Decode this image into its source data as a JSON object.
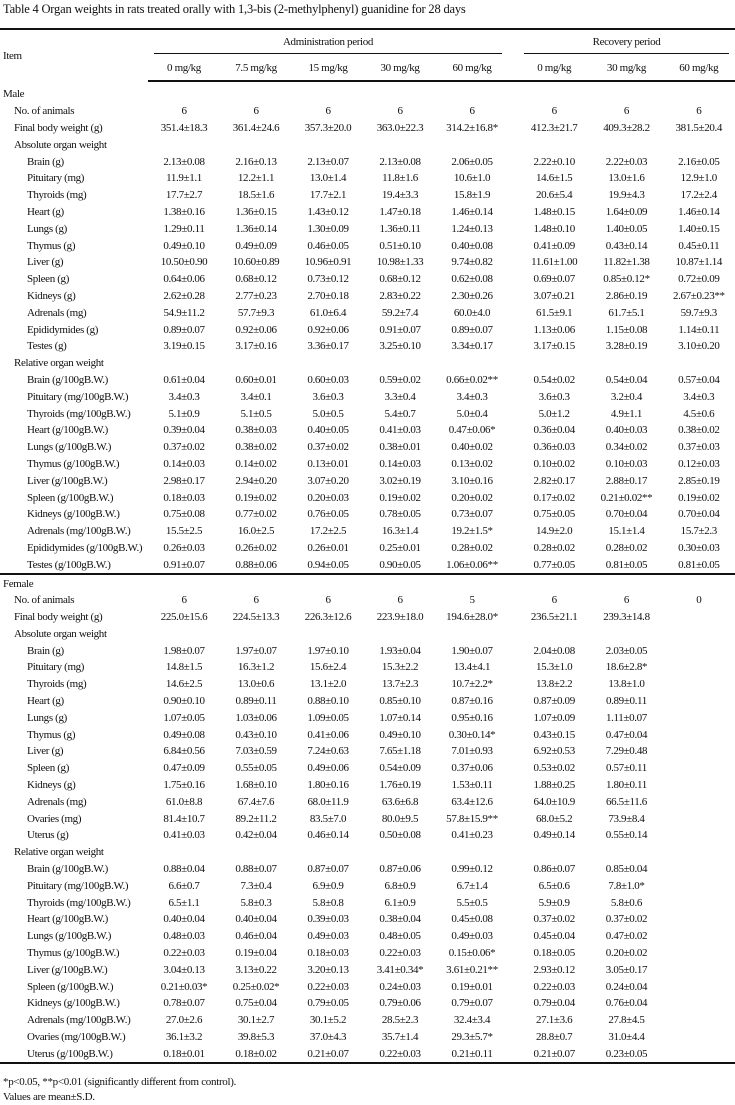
{
  "title": "Table 4   Organ weights in rats treated orally with 1,3-bis (2-methylphenyl) guanidine for 28 days",
  "header": {
    "item": "Item",
    "administration": "Administration period",
    "recovery": "Recovery period",
    "doses": [
      "0 mg/kg",
      "7.5 mg/kg",
      "15 mg/kg",
      "30 mg/kg",
      "60 mg/kg",
      "0 mg/kg",
      "30 mg/kg",
      "60 mg/kg"
    ]
  },
  "sections": [
    {
      "label": "Male",
      "rows": [
        {
          "kind": "summary",
          "label": "No. of animals",
          "values": [
            "6",
            "6",
            "6",
            "6",
            "6",
            "6",
            "6",
            "6"
          ]
        },
        {
          "kind": "summary",
          "label": "Final body weight (g)",
          "values": [
            "351.4±18.3",
            "361.4±24.6",
            "357.3±20.0",
            "363.0±22.3",
            "314.2±16.8*",
            "412.3±21.7",
            "409.3±28.2",
            "381.5±20.4"
          ]
        },
        {
          "kind": "group",
          "label": "Absolute organ weight"
        },
        {
          "kind": "organ",
          "label": "Brain (g)",
          "values": [
            "2.13±0.08",
            "2.16±0.13",
            "2.13±0.07",
            "2.13±0.08",
            "2.06±0.05",
            "2.22±0.10",
            "2.22±0.03",
            "2.16±0.05"
          ]
        },
        {
          "kind": "organ",
          "label": "Pituitary (mg)",
          "values": [
            "11.9±1.1",
            "12.2±1.1",
            "13.0±1.4",
            "11.8±1.6",
            "10.6±1.0",
            "14.6±1.5",
            "13.0±1.6",
            "12.9±1.0"
          ]
        },
        {
          "kind": "organ",
          "label": "Thyroids (mg)",
          "values": [
            "17.7±2.7",
            "18.5±1.6",
            "17.7±2.1",
            "19.4±3.3",
            "15.8±1.9",
            "20.6±5.4",
            "19.9±4.3",
            "17.2±2.4"
          ]
        },
        {
          "kind": "organ",
          "label": "Heart (g)",
          "values": [
            "1.38±0.16",
            "1.36±0.15",
            "1.43±0.12",
            "1.47±0.18",
            "1.46±0.14",
            "1.48±0.15",
            "1.64±0.09",
            "1.46±0.14"
          ]
        },
        {
          "kind": "organ",
          "label": "Lungs (g)",
          "values": [
            "1.29±0.11",
            "1.36±0.14",
            "1.30±0.09",
            "1.36±0.11",
            "1.24±0.13",
            "1.48±0.10",
            "1.40±0.05",
            "1.40±0.15"
          ]
        },
        {
          "kind": "organ",
          "label": "Thymus (g)",
          "values": [
            "0.49±0.10",
            "0.49±0.09",
            "0.46±0.05",
            "0.51±0.10",
            "0.40±0.08",
            "0.41±0.09",
            "0.43±0.14",
            "0.45±0.11"
          ]
        },
        {
          "kind": "organ",
          "label": "Liver (g)",
          "values": [
            "10.50±0.90",
            "10.60±0.89",
            "10.96±0.91",
            "10.98±1.33",
            "9.74±0.82",
            "11.61±1.00",
            "11.82±1.38",
            "10.87±1.14"
          ]
        },
        {
          "kind": "organ",
          "label": "Spleen (g)",
          "values": [
            "0.64±0.06",
            "0.68±0.12",
            "0.73±0.12",
            "0.68±0.12",
            "0.62±0.08",
            "0.69±0.07",
            "0.85±0.12*",
            "0.72±0.09"
          ]
        },
        {
          "kind": "organ",
          "label": "Kidneys (g)",
          "values": [
            "2.62±0.28",
            "2.77±0.23",
            "2.70±0.18",
            "2.83±0.22",
            "2.30±0.26",
            "3.07±0.21",
            "2.86±0.19",
            "2.67±0.23**"
          ]
        },
        {
          "kind": "organ",
          "label": "Adrenals (mg)",
          "values": [
            "54.9±11.2",
            "57.7±9.3",
            "61.0±6.4",
            "59.2±7.4",
            "60.0±4.0",
            "61.5±9.1",
            "61.7±5.1",
            "59.7±9.3"
          ]
        },
        {
          "kind": "organ",
          "label": "Epididymides (g)",
          "values": [
            "0.89±0.07",
            "0.92±0.06",
            "0.92±0.06",
            "0.91±0.07",
            "0.89±0.07",
            "1.13±0.06",
            "1.15±0.08",
            "1.14±0.11"
          ]
        },
        {
          "kind": "organ",
          "label": "Testes (g)",
          "values": [
            "3.19±0.15",
            "3.17±0.16",
            "3.36±0.17",
            "3.25±0.10",
            "3.34±0.17",
            "3.17±0.15",
            "3.28±0.19",
            "3.10±0.20"
          ]
        },
        {
          "kind": "group",
          "label": "Relative organ weight"
        },
        {
          "kind": "organ",
          "label": "Brain (g/100gB.W.)",
          "values": [
            "0.61±0.04",
            "0.60±0.01",
            "0.60±0.03",
            "0.59±0.02",
            "0.66±0.02**",
            "0.54±0.02",
            "0.54±0.04",
            "0.57±0.04"
          ]
        },
        {
          "kind": "organ",
          "label": "Pituitary (mg/100gB.W.)",
          "values": [
            "3.4±0.3",
            "3.4±0.1",
            "3.6±0.3",
            "3.3±0.4",
            "3.4±0.3",
            "3.6±0.3",
            "3.2±0.4",
            "3.4±0.3"
          ]
        },
        {
          "kind": "organ",
          "label": "Thyroids (mg/100gB.W.)",
          "values": [
            "5.1±0.9",
            "5.1±0.5",
            "5.0±0.5",
            "5.4±0.7",
            "5.0±0.4",
            "5.0±1.2",
            "4.9±1.1",
            "4.5±0.6"
          ]
        },
        {
          "kind": "organ",
          "label": "Heart (g/100gB.W.)",
          "values": [
            "0.39±0.04",
            "0.38±0.03",
            "0.40±0.05",
            "0.41±0.03",
            "0.47±0.06*",
            "0.36±0.04",
            "0.40±0.03",
            "0.38±0.02"
          ]
        },
        {
          "kind": "organ",
          "label": "Lungs (g/100gB.W.)",
          "values": [
            "0.37±0.02",
            "0.38±0.02",
            "0.37±0.02",
            "0.38±0.01",
            "0.40±0.02",
            "0.36±0.03",
            "0.34±0.02",
            "0.37±0.03"
          ]
        },
        {
          "kind": "organ",
          "label": "Thymus (g/100gB.W.)",
          "values": [
            "0.14±0.03",
            "0.14±0.02",
            "0.13±0.01",
            "0.14±0.03",
            "0.13±0.02",
            "0.10±0.02",
            "0.10±0.03",
            "0.12±0.03"
          ]
        },
        {
          "kind": "organ",
          "label": "Liver (g/100gB.W.)",
          "values": [
            "2.98±0.17",
            "2.94±0.20",
            "3.07±0.20",
            "3.02±0.19",
            "3.10±0.16",
            "2.82±0.17",
            "2.88±0.17",
            "2.85±0.19"
          ]
        },
        {
          "kind": "organ",
          "label": "Spleen (g/100gB.W.)",
          "values": [
            "0.18±0.03",
            "0.19±0.02",
            "0.20±0.03",
            "0.19±0.02",
            "0.20±0.02",
            "0.17±0.02",
            "0.21±0.02**",
            "0.19±0.02"
          ]
        },
        {
          "kind": "organ",
          "label": "Kidneys (g/100gB.W.)",
          "values": [
            "0.75±0.08",
            "0.77±0.02",
            "0.76±0.05",
            "0.78±0.05",
            "0.73±0.07",
            "0.75±0.05",
            "0.70±0.04",
            "0.70±0.04"
          ]
        },
        {
          "kind": "organ",
          "label": "Adrenals (mg/100gB.W.)",
          "values": [
            "15.5±2.5",
            "16.0±2.5",
            "17.2±2.5",
            "16.3±1.4",
            "19.2±1.5*",
            "14.9±2.0",
            "15.1±1.4",
            "15.7±2.3"
          ]
        },
        {
          "kind": "organ",
          "label": "Epididymides (g/100gB.W.)",
          "values": [
            "0.26±0.03",
            "0.26±0.02",
            "0.26±0.01",
            "0.25±0.01",
            "0.28±0.02",
            "0.28±0.02",
            "0.28±0.02",
            "0.30±0.03"
          ]
        },
        {
          "kind": "organ",
          "label": "Testes (g/100gB.W.)",
          "values": [
            "0.91±0.07",
            "0.88±0.06",
            "0.94±0.05",
            "0.90±0.05",
            "1.06±0.06**",
            "0.77±0.05",
            "0.81±0.05",
            "0.81±0.05"
          ]
        }
      ]
    },
    {
      "label": "Female",
      "rows": [
        {
          "kind": "summary",
          "label": "No. of animals",
          "values": [
            "6",
            "6",
            "6",
            "6",
            "5",
            "6",
            "6",
            "0"
          ]
        },
        {
          "kind": "summary",
          "label": "Final body weight (g)",
          "values": [
            "225.0±15.6",
            "224.5±13.3",
            "226.3±12.6",
            "223.9±18.0",
            "194.6±28.0*",
            "236.5±21.1",
            "239.3±14.8",
            ""
          ]
        },
        {
          "kind": "group",
          "label": "Absolute organ weight"
        },
        {
          "kind": "organ",
          "label": "Brain (g)",
          "values": [
            "1.98±0.07",
            "1.97±0.07",
            "1.97±0.10",
            "1.93±0.04",
            "1.90±0.07",
            "2.04±0.08",
            "2.03±0.05",
            ""
          ]
        },
        {
          "kind": "organ",
          "label": "Pituitary (mg)",
          "values": [
            "14.8±1.5",
            "16.3±1.2",
            "15.6±2.4",
            "15.3±2.2",
            "13.4±4.1",
            "15.3±1.0",
            "18.6±2.8*",
            ""
          ]
        },
        {
          "kind": "organ",
          "label": "Thyroids (mg)",
          "values": [
            "14.6±2.5",
            "13.0±0.6",
            "13.1±2.0",
            "13.7±2.3",
            "10.7±2.2*",
            "13.8±2.2",
            "13.8±1.0",
            ""
          ]
        },
        {
          "kind": "organ",
          "label": "Heart (g)",
          "values": [
            "0.90±0.10",
            "0.89±0.11",
            "0.88±0.10",
            "0.85±0.10",
            "0.87±0.16",
            "0.87±0.09",
            "0.89±0.11",
            ""
          ]
        },
        {
          "kind": "organ",
          "label": "Lungs (g)",
          "values": [
            "1.07±0.05",
            "1.03±0.06",
            "1.09±0.05",
            "1.07±0.14",
            "0.95±0.16",
            "1.07±0.09",
            "1.11±0.07",
            ""
          ]
        },
        {
          "kind": "organ",
          "label": "Thymus (g)",
          "values": [
            "0.49±0.08",
            "0.43±0.10",
            "0.41±0.06",
            "0.49±0.10",
            "0.30±0.14*",
            "0.43±0.15",
            "0.47±0.04",
            ""
          ]
        },
        {
          "kind": "organ",
          "label": "Liver (g)",
          "values": [
            "6.84±0.56",
            "7.03±0.59",
            "7.24±0.63",
            "7.65±1.18",
            "7.01±0.93",
            "6.92±0.53",
            "7.29±0.48",
            ""
          ]
        },
        {
          "kind": "organ",
          "label": "Spleen (g)",
          "values": [
            "0.47±0.09",
            "0.55±0.05",
            "0.49±0.06",
            "0.54±0.09",
            "0.37±0.06",
            "0.53±0.02",
            "0.57±0.11",
            ""
          ]
        },
        {
          "kind": "organ",
          "label": "Kidneys (g)",
          "values": [
            "1.75±0.16",
            "1.68±0.10",
            "1.80±0.16",
            "1.76±0.19",
            "1.53±0.11",
            "1.88±0.25",
            "1.80±0.11",
            ""
          ]
        },
        {
          "kind": "organ",
          "label": "Adrenals (mg)",
          "values": [
            "61.0±8.8",
            "67.4±7.6",
            "68.0±11.9",
            "63.6±6.8",
            "63.4±12.6",
            "64.0±10.9",
            "66.5±11.6",
            ""
          ]
        },
        {
          "kind": "organ",
          "label": "Ovaries (mg)",
          "values": [
            "81.4±10.7",
            "89.2±11.2",
            "83.5±7.0",
            "80.0±9.5",
            "57.8±15.9**",
            "68.0±5.2",
            "73.9±8.4",
            ""
          ]
        },
        {
          "kind": "organ",
          "label": "Uterus (g)",
          "values": [
            "0.41±0.03",
            "0.42±0.04",
            "0.46±0.14",
            "0.50±0.08",
            "0.41±0.23",
            "0.49±0.14",
            "0.55±0.14",
            ""
          ]
        },
        {
          "kind": "group",
          "label": "Relative organ weight"
        },
        {
          "kind": "organ",
          "label": "Brain (g/100gB.W.)",
          "values": [
            "0.88±0.04",
            "0.88±0.07",
            "0.87±0.07",
            "0.87±0.06",
            "0.99±0.12",
            "0.86±0.07",
            "0.85±0.04",
            ""
          ]
        },
        {
          "kind": "organ",
          "label": "Pituitary (mg/100gB.W.)",
          "values": [
            "6.6±0.7",
            "7.3±0.4",
            "6.9±0.9",
            "6.8±0.9",
            "6.7±1.4",
            "6.5±0.6",
            "7.8±1.0*",
            ""
          ]
        },
        {
          "kind": "organ",
          "label": "Thyroids (mg/100gB.W.)",
          "values": [
            "6.5±1.1",
            "5.8±0.3",
            "5.8±0.8",
            "6.1±0.9",
            "5.5±0.5",
            "5.9±0.9",
            "5.8±0.6",
            ""
          ]
        },
        {
          "kind": "organ",
          "label": "Heart (g/100gB.W.)",
          "values": [
            "0.40±0.04",
            "0.40±0.04",
            "0.39±0.03",
            "0.38±0.04",
            "0.45±0.08",
            "0.37±0.02",
            "0.37±0.02",
            ""
          ]
        },
        {
          "kind": "organ",
          "label": "Lungs (g/100gB.W.)",
          "values": [
            "0.48±0.03",
            "0.46±0.04",
            "0.49±0.03",
            "0.48±0.05",
            "0.49±0.03",
            "0.45±0.04",
            "0.47±0.02",
            ""
          ]
        },
        {
          "kind": "organ",
          "label": "Thymus (g/100gB.W.)",
          "values": [
            "0.22±0.03",
            "0.19±0.04",
            "0.18±0.03",
            "0.22±0.03",
            "0.15±0.06*",
            "0.18±0.05",
            "0.20±0.02",
            ""
          ]
        },
        {
          "kind": "organ",
          "label": "Liver (g/100gB.W.)",
          "values": [
            "3.04±0.13",
            "3.13±0.22",
            "3.20±0.13",
            "3.41±0.34*",
            "3.61±0.21**",
            "2.93±0.12",
            "3.05±0.17",
            ""
          ]
        },
        {
          "kind": "organ",
          "label": "Spleen (g/100gB.W.)",
          "values": [
            "0.21±0.03*",
            "0.25±0.02*",
            "0.22±0.03",
            "0.24±0.03",
            "0.19±0.01",
            "0.22±0.03",
            "0.24±0.04",
            ""
          ]
        },
        {
          "kind": "organ",
          "label": "Kidneys (g/100gB.W.)",
          "values": [
            "0.78±0.07",
            "0.75±0.04",
            "0.79±0.05",
            "0.79±0.06",
            "0.79±0.07",
            "0.79±0.04",
            "0.76±0.04",
            ""
          ]
        },
        {
          "kind": "organ",
          "label": "Adrenals (mg/100gB.W.)",
          "values": [
            "27.0±2.6",
            "30.1±2.7",
            "30.1±5.2",
            "28.5±2.3",
            "32.4±3.4",
            "27.1±3.6",
            "27.8±4.5",
            ""
          ]
        },
        {
          "kind": "organ",
          "label": "Ovaries (mg/100gB.W.)",
          "values": [
            "36.1±3.2",
            "39.8±5.3",
            "37.0±4.3",
            "35.7±1.4",
            "29.3±5.7*",
            "28.8±0.7",
            "31.0±4.4",
            ""
          ]
        },
        {
          "kind": "organ",
          "label": "Uterus (g/100gB.W.)",
          "values": [
            "0.18±0.01",
            "0.18±0.02",
            "0.21±0.07",
            "0.22±0.03",
            "0.21±0.11",
            "0.21±0.07",
            "0.23±0.05",
            ""
          ]
        }
      ]
    }
  ],
  "footnotes": [
    "*p<0.05, **p<0.01 (significantly different from control).",
    "Values are mean±S.D."
  ]
}
